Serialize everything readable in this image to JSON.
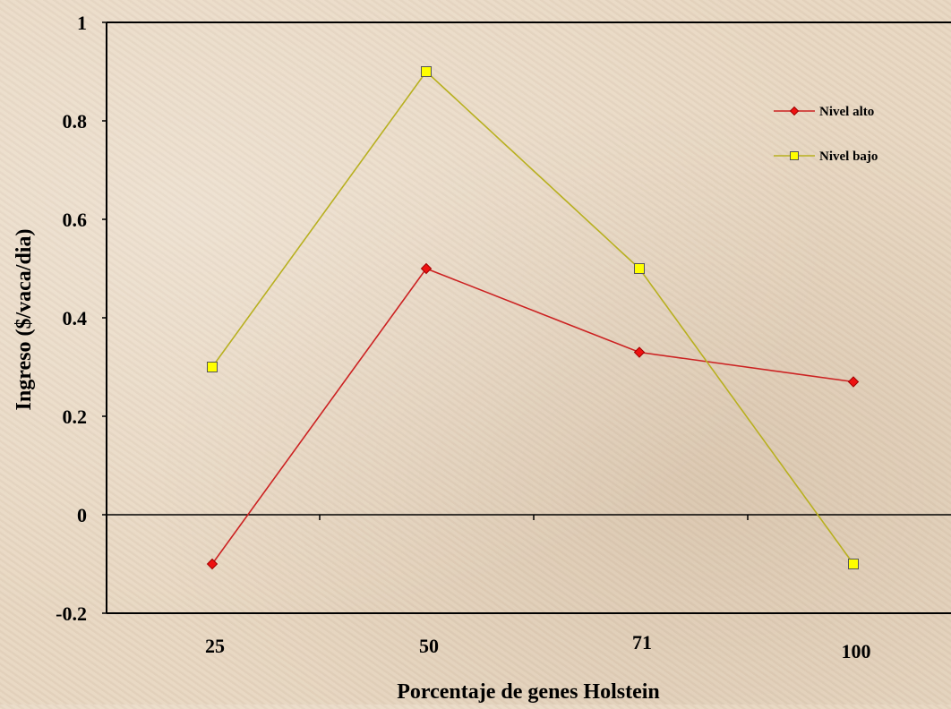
{
  "chart_data": {
    "type": "line",
    "title": "",
    "xlabel": "Porcentaje de genes Holstein",
    "ylabel": "Ingreso ($/vaca/dia)",
    "categories": [
      "25",
      "50",
      "71",
      "100"
    ],
    "ylim": [
      -0.2,
      1
    ],
    "yticks": [
      -0.2,
      0,
      0.2,
      0.4,
      0.6,
      0.8,
      1
    ],
    "ytick_labels": [
      "-0.2",
      "0",
      "0.2",
      "0.4",
      "0.6",
      "0.8",
      "1"
    ],
    "grid": false,
    "legend_position": "top-right",
    "series": [
      {
        "name": "Nivel alto",
        "values": [
          -0.1,
          0.5,
          0.33,
          0.27
        ],
        "color": "#cc2222",
        "marker": "diamond",
        "marker_color": "#ee1111"
      },
      {
        "name": "Nivel bajo",
        "values": [
          0.3,
          0.9,
          0.5,
          -0.1
        ],
        "color": "#b8b020",
        "marker": "square",
        "marker_color": "#ffff00"
      }
    ]
  }
}
